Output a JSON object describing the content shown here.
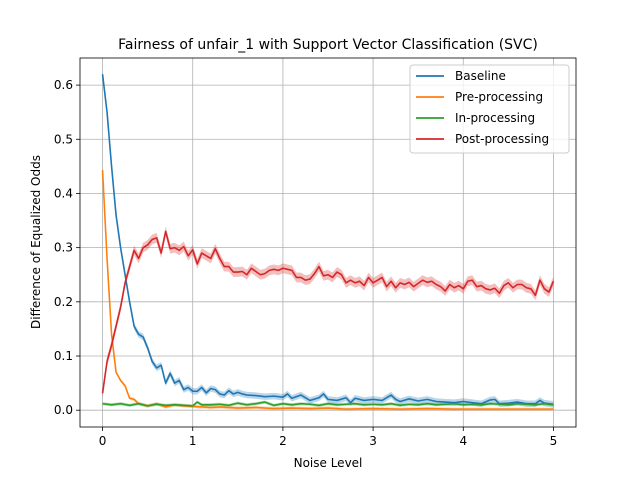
{
  "chart_data": {
    "type": "line",
    "title": "Fairness of unfair_1 with Support Vector Classification (SVC)",
    "xlabel": "Noise Level",
    "ylabel": "Difference of Equalized Odds",
    "xlim": [
      -0.25,
      5.25
    ],
    "ylim": [
      -0.031,
      0.65
    ],
    "xticks": [
      0,
      1,
      2,
      3,
      4,
      5
    ],
    "yticks": [
      0.0,
      0.1,
      0.2,
      0.3,
      0.4,
      0.5,
      0.6
    ],
    "xtick_labels": [
      "0",
      "1",
      "2",
      "3",
      "4",
      "5"
    ],
    "ytick_labels": [
      "0.0",
      "0.1",
      "0.2",
      "0.3",
      "0.4",
      "0.5",
      "0.6"
    ],
    "grid": true,
    "legend_position": "top-right",
    "x": [
      0,
      0.5,
      1,
      1.5,
      2,
      2.5,
      3,
      3.5,
      4,
      4.5,
      5
    ],
    "series": [
      {
        "name": "Baseline",
        "color": "#1f77b4",
        "points": [
          [
            0,
            0.62
          ],
          [
            0.05,
            0.55
          ],
          [
            0.1,
            0.45
          ],
          [
            0.15,
            0.36
          ],
          [
            0.2,
            0.3
          ],
          [
            0.25,
            0.25
          ],
          [
            0.3,
            0.2
          ],
          [
            0.35,
            0.155
          ],
          [
            0.4,
            0.14
          ],
          [
            0.45,
            0.135
          ],
          [
            0.5,
            0.115
          ],
          [
            0.55,
            0.09
          ],
          [
            0.6,
            0.078
          ],
          [
            0.65,
            0.083
          ],
          [
            0.7,
            0.05
          ],
          [
            0.75,
            0.068
          ],
          [
            0.8,
            0.05
          ],
          [
            0.85,
            0.055
          ],
          [
            0.9,
            0.038
          ],
          [
            0.95,
            0.042
          ],
          [
            1.0,
            0.035
          ],
          [
            1.05,
            0.035
          ],
          [
            1.1,
            0.042
          ],
          [
            1.15,
            0.032
          ],
          [
            1.2,
            0.04
          ],
          [
            1.25,
            0.038
          ],
          [
            1.3,
            0.03
          ],
          [
            1.35,
            0.028
          ],
          [
            1.4,
            0.036
          ],
          [
            1.45,
            0.03
          ],
          [
            1.5,
            0.033
          ],
          [
            1.55,
            0.03
          ],
          [
            1.6,
            0.028
          ],
          [
            1.7,
            0.027
          ],
          [
            1.8,
            0.025
          ],
          [
            1.9,
            0.026
          ],
          [
            2.0,
            0.024
          ],
          [
            2.05,
            0.03
          ],
          [
            2.1,
            0.022
          ],
          [
            2.2,
            0.028
          ],
          [
            2.3,
            0.018
          ],
          [
            2.4,
            0.023
          ],
          [
            2.45,
            0.03
          ],
          [
            2.5,
            0.02
          ],
          [
            2.6,
            0.018
          ],
          [
            2.7,
            0.023
          ],
          [
            2.75,
            0.014
          ],
          [
            2.8,
            0.022
          ],
          [
            2.9,
            0.018
          ],
          [
            3.0,
            0.02
          ],
          [
            3.1,
            0.018
          ],
          [
            3.2,
            0.028
          ],
          [
            3.25,
            0.02
          ],
          [
            3.3,
            0.016
          ],
          [
            3.4,
            0.021
          ],
          [
            3.5,
            0.017
          ],
          [
            3.6,
            0.02
          ],
          [
            3.7,
            0.016
          ],
          [
            3.8,
            0.015
          ],
          [
            3.9,
            0.014
          ],
          [
            4.0,
            0.016
          ],
          [
            4.1,
            0.014
          ],
          [
            4.2,
            0.012
          ],
          [
            4.3,
            0.019
          ],
          [
            4.35,
            0.02
          ],
          [
            4.4,
            0.012
          ],
          [
            4.5,
            0.013
          ],
          [
            4.6,
            0.015
          ],
          [
            4.7,
            0.012
          ],
          [
            4.8,
            0.012
          ],
          [
            4.85,
            0.018
          ],
          [
            4.9,
            0.013
          ],
          [
            5.0,
            0.011
          ]
        ]
      },
      {
        "name": "Pre-processing",
        "color": "#ff7f0e",
        "points": [
          [
            0,
            0.443
          ],
          [
            0.05,
            0.28
          ],
          [
            0.1,
            0.14
          ],
          [
            0.15,
            0.07
          ],
          [
            0.2,
            0.055
          ],
          [
            0.25,
            0.045
          ],
          [
            0.3,
            0.022
          ],
          [
            0.35,
            0.02
          ],
          [
            0.4,
            0.012
          ],
          [
            0.5,
            0.008
          ],
          [
            0.6,
            0.012
          ],
          [
            0.7,
            0.006
          ],
          [
            0.8,
            0.01
          ],
          [
            0.9,
            0.008
          ],
          [
            1.0,
            0.007
          ],
          [
            1.1,
            0.006
          ],
          [
            1.2,
            0.005
          ],
          [
            1.3,
            0.006
          ],
          [
            1.5,
            0.004
          ],
          [
            1.7,
            0.005
          ],
          [
            1.9,
            0.003
          ],
          [
            2.1,
            0.004
          ],
          [
            2.3,
            0.003
          ],
          [
            2.5,
            0.004
          ],
          [
            2.7,
            0.002
          ],
          [
            3.0,
            0.003
          ],
          [
            3.3,
            0.002
          ],
          [
            3.6,
            0.003
          ],
          [
            3.9,
            0.002
          ],
          [
            4.2,
            0.002
          ],
          [
            4.5,
            0.002
          ],
          [
            4.8,
            0.002
          ],
          [
            5.0,
            0.002
          ]
        ]
      },
      {
        "name": "In-processing",
        "color": "#2ca02c",
        "points": [
          [
            0,
            0.012
          ],
          [
            0.1,
            0.01
          ],
          [
            0.2,
            0.012
          ],
          [
            0.3,
            0.009
          ],
          [
            0.4,
            0.012
          ],
          [
            0.5,
            0.008
          ],
          [
            0.6,
            0.011
          ],
          [
            0.7,
            0.009
          ],
          [
            0.8,
            0.01
          ],
          [
            0.9,
            0.009
          ],
          [
            1.0,
            0.008
          ],
          [
            1.05,
            0.015
          ],
          [
            1.1,
            0.01
          ],
          [
            1.2,
            0.01
          ],
          [
            1.3,
            0.011
          ],
          [
            1.4,
            0.009
          ],
          [
            1.5,
            0.013
          ],
          [
            1.6,
            0.01
          ],
          [
            1.7,
            0.012
          ],
          [
            1.8,
            0.015
          ],
          [
            1.9,
            0.009
          ],
          [
            2.0,
            0.012
          ],
          [
            2.1,
            0.01
          ],
          [
            2.2,
            0.012
          ],
          [
            2.3,
            0.011
          ],
          [
            2.4,
            0.009
          ],
          [
            2.5,
            0.012
          ],
          [
            2.6,
            0.01
          ],
          [
            2.7,
            0.011
          ],
          [
            2.8,
            0.012
          ],
          [
            2.9,
            0.01
          ],
          [
            3.0,
            0.011
          ],
          [
            3.1,
            0.01
          ],
          [
            3.2,
            0.012
          ],
          [
            3.3,
            0.009
          ],
          [
            3.4,
            0.011
          ],
          [
            3.5,
            0.01
          ],
          [
            3.6,
            0.012
          ],
          [
            3.7,
            0.01
          ],
          [
            3.8,
            0.011
          ],
          [
            3.9,
            0.012
          ],
          [
            4.0,
            0.01
          ],
          [
            4.1,
            0.011
          ],
          [
            4.2,
            0.01
          ],
          [
            4.3,
            0.012
          ],
          [
            4.4,
            0.011
          ],
          [
            4.5,
            0.01
          ],
          [
            4.6,
            0.012
          ],
          [
            4.7,
            0.011
          ],
          [
            4.8,
            0.01
          ],
          [
            4.9,
            0.012
          ],
          [
            5.0,
            0.01
          ]
        ]
      },
      {
        "name": "Post-processing",
        "color": "#d62728",
        "points": [
          [
            0,
            0.031
          ],
          [
            0.05,
            0.09
          ],
          [
            0.1,
            0.12
          ],
          [
            0.15,
            0.155
          ],
          [
            0.2,
            0.19
          ],
          [
            0.25,
            0.235
          ],
          [
            0.3,
            0.265
          ],
          [
            0.35,
            0.295
          ],
          [
            0.4,
            0.28
          ],
          [
            0.45,
            0.3
          ],
          [
            0.5,
            0.305
          ],
          [
            0.55,
            0.315
          ],
          [
            0.6,
            0.318
          ],
          [
            0.65,
            0.29
          ],
          [
            0.7,
            0.33
          ],
          [
            0.75,
            0.298
          ],
          [
            0.8,
            0.3
          ],
          [
            0.85,
            0.295
          ],
          [
            0.9,
            0.302
          ],
          [
            0.95,
            0.285
          ],
          [
            1.0,
            0.296
          ],
          [
            1.05,
            0.27
          ],
          [
            1.1,
            0.29
          ],
          [
            1.15,
            0.285
          ],
          [
            1.2,
            0.28
          ],
          [
            1.25,
            0.298
          ],
          [
            1.3,
            0.28
          ],
          [
            1.35,
            0.265
          ],
          [
            1.4,
            0.265
          ],
          [
            1.45,
            0.255
          ],
          [
            1.5,
            0.255
          ],
          [
            1.55,
            0.256
          ],
          [
            1.6,
            0.25
          ],
          [
            1.65,
            0.262
          ],
          [
            1.7,
            0.256
          ],
          [
            1.75,
            0.25
          ],
          [
            1.8,
            0.252
          ],
          [
            1.85,
            0.258
          ],
          [
            1.9,
            0.26
          ],
          [
            1.95,
            0.258
          ],
          [
            2.0,
            0.262
          ],
          [
            2.05,
            0.26
          ],
          [
            2.1,
            0.258
          ],
          [
            2.15,
            0.245
          ],
          [
            2.2,
            0.245
          ],
          [
            2.25,
            0.24
          ],
          [
            2.3,
            0.242
          ],
          [
            2.35,
            0.252
          ],
          [
            2.4,
            0.265
          ],
          [
            2.45,
            0.248
          ],
          [
            2.5,
            0.25
          ],
          [
            2.55,
            0.245
          ],
          [
            2.6,
            0.255
          ],
          [
            2.65,
            0.25
          ],
          [
            2.7,
            0.235
          ],
          [
            2.75,
            0.24
          ],
          [
            2.8,
            0.235
          ],
          [
            2.85,
            0.238
          ],
          [
            2.9,
            0.23
          ],
          [
            2.95,
            0.245
          ],
          [
            3.0,
            0.235
          ],
          [
            3.05,
            0.24
          ],
          [
            3.1,
            0.245
          ],
          [
            3.15,
            0.228
          ],
          [
            3.2,
            0.238
          ],
          [
            3.25,
            0.226
          ],
          [
            3.3,
            0.235
          ],
          [
            3.35,
            0.232
          ],
          [
            3.4,
            0.236
          ],
          [
            3.45,
            0.228
          ],
          [
            3.5,
            0.234
          ],
          [
            3.55,
            0.24
          ],
          [
            3.6,
            0.236
          ],
          [
            3.65,
            0.238
          ],
          [
            3.7,
            0.232
          ],
          [
            3.75,
            0.228
          ],
          [
            3.8,
            0.22
          ],
          [
            3.85,
            0.232
          ],
          [
            3.9,
            0.226
          ],
          [
            3.95,
            0.23
          ],
          [
            4.0,
            0.224
          ],
          [
            4.05,
            0.238
          ],
          [
            4.1,
            0.24
          ],
          [
            4.15,
            0.228
          ],
          [
            4.2,
            0.23
          ],
          [
            4.25,
            0.224
          ],
          [
            4.3,
            0.222
          ],
          [
            4.35,
            0.225
          ],
          [
            4.4,
            0.216
          ],
          [
            4.45,
            0.23
          ],
          [
            4.5,
            0.235
          ],
          [
            4.55,
            0.226
          ],
          [
            4.6,
            0.232
          ],
          [
            4.65,
            0.232
          ],
          [
            4.7,
            0.226
          ],
          [
            4.75,
            0.224
          ],
          [
            4.8,
            0.212
          ],
          [
            4.85,
            0.24
          ],
          [
            4.9,
            0.224
          ],
          [
            4.95,
            0.218
          ],
          [
            5.0,
            0.238
          ]
        ]
      }
    ]
  }
}
